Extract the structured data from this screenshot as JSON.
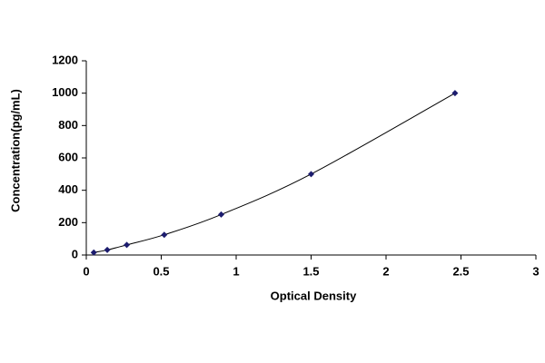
{
  "chart_data": {
    "type": "line",
    "x_label": "Optical Density",
    "y_label": "Concentration(pg/mL)",
    "x": [
      0.05,
      0.14,
      0.27,
      0.52,
      0.9,
      1.5,
      2.46
    ],
    "series": [
      {
        "color": "#1c1c6e",
        "values": [
          15.6,
          31.2,
          62.5,
          125,
          250,
          500,
          1000
        ]
      }
    ],
    "xlim": [
      0,
      3
    ],
    "xticks": [
      0,
      0.5,
      1,
      1.5,
      2,
      2.5,
      3
    ],
    "ylim": [
      0,
      1200
    ],
    "yticks": [
      0,
      200,
      400,
      600,
      800,
      1000,
      1200
    ],
    "grid": false
  }
}
